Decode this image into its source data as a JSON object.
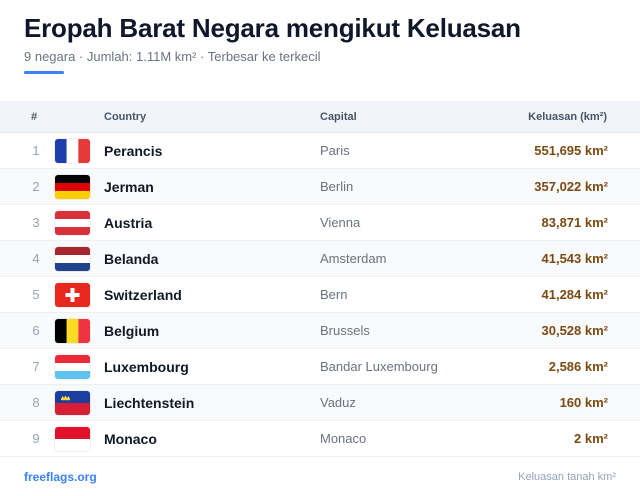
{
  "header": {
    "title": "Eropah Barat Negara mengikut Keluasan",
    "subtitle": "9 negara · Jumlah: 1.11M km² · Terbesar ke terkecil",
    "accent_color": "#3b82f6"
  },
  "table": {
    "columns": {
      "num": "#",
      "country": "Country",
      "capital": "Capital",
      "area": "Keluasan (km²)"
    },
    "rows": [
      {
        "rank": "1",
        "country": "Perancis",
        "capital": "Paris",
        "area": "551,695 km²",
        "flag": "flag-france-icon"
      },
      {
        "rank": "2",
        "country": "Jerman",
        "capital": "Berlin",
        "area": "357,022 km²",
        "flag": "flag-germany-icon"
      },
      {
        "rank": "3",
        "country": "Austria",
        "capital": "Vienna",
        "area": "83,871 km²",
        "flag": "flag-austria-icon"
      },
      {
        "rank": "4",
        "country": "Belanda",
        "capital": "Amsterdam",
        "area": "41,543 km²",
        "flag": "flag-netherlands-icon"
      },
      {
        "rank": "5",
        "country": "Switzerland",
        "capital": "Bern",
        "area": "41,284 km²",
        "flag": "flag-switzerland-icon"
      },
      {
        "rank": "6",
        "country": "Belgium",
        "capital": "Brussels",
        "area": "30,528 km²",
        "flag": "flag-belgium-icon"
      },
      {
        "rank": "7",
        "country": "Luxembourg",
        "capital": "Bandar Luxembourg",
        "area": "2,586 km²",
        "flag": "flag-luxembourg-icon"
      },
      {
        "rank": "8",
        "country": "Liechtenstein",
        "capital": "Vaduz",
        "area": "160 km²",
        "flag": "flag-liechtenstein-icon"
      },
      {
        "rank": "9",
        "country": "Monaco",
        "capital": "Monaco",
        "area": "2 km²",
        "flag": "flag-monaco-icon"
      }
    ]
  },
  "footer": {
    "site": "freeflags.org",
    "note": "Keluasan tanah km²"
  }
}
